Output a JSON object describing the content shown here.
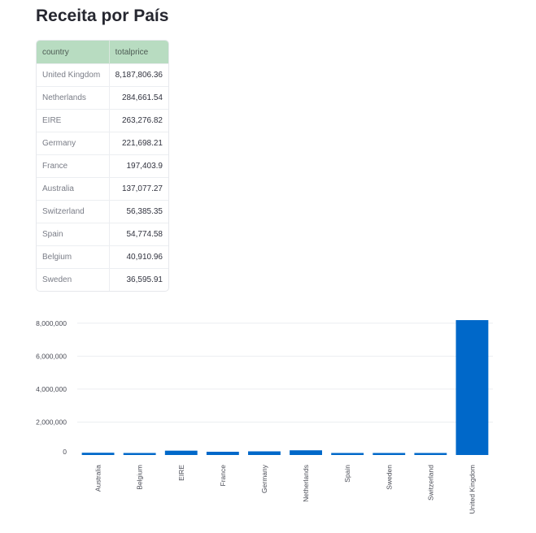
{
  "page_title": "Receita por País",
  "table": {
    "columns": [
      "country",
      "totalprice"
    ],
    "rows": [
      {
        "country": "United Kingdom",
        "totalprice": "8,187,806.36"
      },
      {
        "country": "Netherlands",
        "totalprice": "284,661.54"
      },
      {
        "country": "EIRE",
        "totalprice": "263,276.82"
      },
      {
        "country": "Germany",
        "totalprice": "221,698.21"
      },
      {
        "country": "France",
        "totalprice": "197,403.9"
      },
      {
        "country": "Australia",
        "totalprice": "137,077.27"
      },
      {
        "country": "Switzerland",
        "totalprice": "56,385.35"
      },
      {
        "country": "Spain",
        "totalprice": "54,774.58"
      },
      {
        "country": "Belgium",
        "totalprice": "40,910.96"
      },
      {
        "country": "Sweden",
        "totalprice": "36,595.91"
      }
    ]
  },
  "chart_data": {
    "type": "bar",
    "title": "",
    "xlabel": "",
    "ylabel": "",
    "categories": [
      "Australia",
      "Belgium",
      "EIRE",
      "France",
      "Germany",
      "Netherlands",
      "Spain",
      "Sweden",
      "Switzerland",
      "United Kingdom"
    ],
    "values": [
      137077.27,
      40910.96,
      263276.82,
      197403.9,
      221698.21,
      284661.54,
      54774.58,
      36595.91,
      56385.35,
      8187806.36
    ],
    "yticks": [
      0,
      2000000,
      4000000,
      6000000,
      8000000
    ],
    "ytick_labels": [
      "0",
      "2,000,000",
      "4,000,000",
      "6,000,000",
      "8,000,000"
    ],
    "ylim": [
      0,
      8187806.36
    ],
    "grid": true,
    "bar_color": "#0068c9"
  }
}
